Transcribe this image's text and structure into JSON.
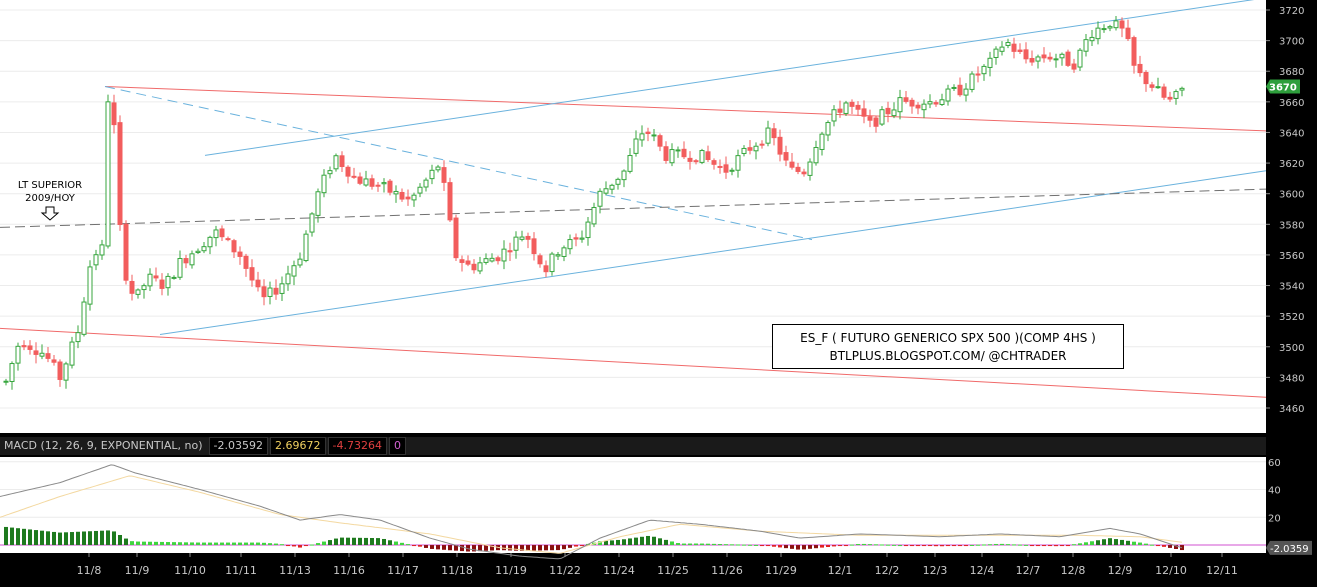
{
  "chart_data": [
    {
      "type": "candlestick",
      "title": "ES_F ( FUTURO GENERICO SPX 500 )(COMP 4HS )",
      "subtitle": "BTLPLUS.BLOGSPOT.COM/ @CHTRADER",
      "annotation": "LT SUPERIOR 2009/HOY",
      "annotation_lines": [
        "LT SUPERIOR",
        "2009/HOY"
      ],
      "ylim": [
        3450,
        3725
      ],
      "y_ticks": [
        "3720",
        "3700",
        "3680",
        "3660",
        "3640",
        "3620",
        "3600",
        "3580",
        "3560",
        "3540",
        "3520",
        "3500",
        "3480",
        "3460"
      ],
      "last_price": "3670",
      "x_ticks": [
        "11/8",
        "11/9",
        "11/10",
        "11/11",
        "11/13",
        "11/16",
        "11/17",
        "11/18",
        "11/19",
        "11/22",
        "11/24",
        "11/25",
        "11/26",
        "11/29",
        "12/1",
        "12/2",
        "12/3",
        "12/4",
        "12/7",
        "12/8",
        "12/9",
        "12/10",
        "12/11"
      ],
      "grid": true,
      "colors": {
        "up": "#37a63e",
        "down": "#f25d5d",
        "blue_line": "#6ab2dd",
        "red_line": "#f06a6a",
        "gray_line": "#707070",
        "price_tag": "#2e9e3c"
      }
    },
    {
      "type": "macd",
      "header_label": "MACD (12, 26, 9, EXPONENTIAL, no)",
      "values": [
        "-2.03592",
        "2.69672",
        "-4.73264",
        "0"
      ],
      "value_colors": [
        "#c8c8c8",
        "#f0d060",
        "#e04040",
        "#d060d0"
      ],
      "y_ticks": [
        "60",
        "40",
        "20"
      ],
      "ylim": [
        -5,
        62
      ],
      "last_value": "-2.0359"
    }
  ]
}
